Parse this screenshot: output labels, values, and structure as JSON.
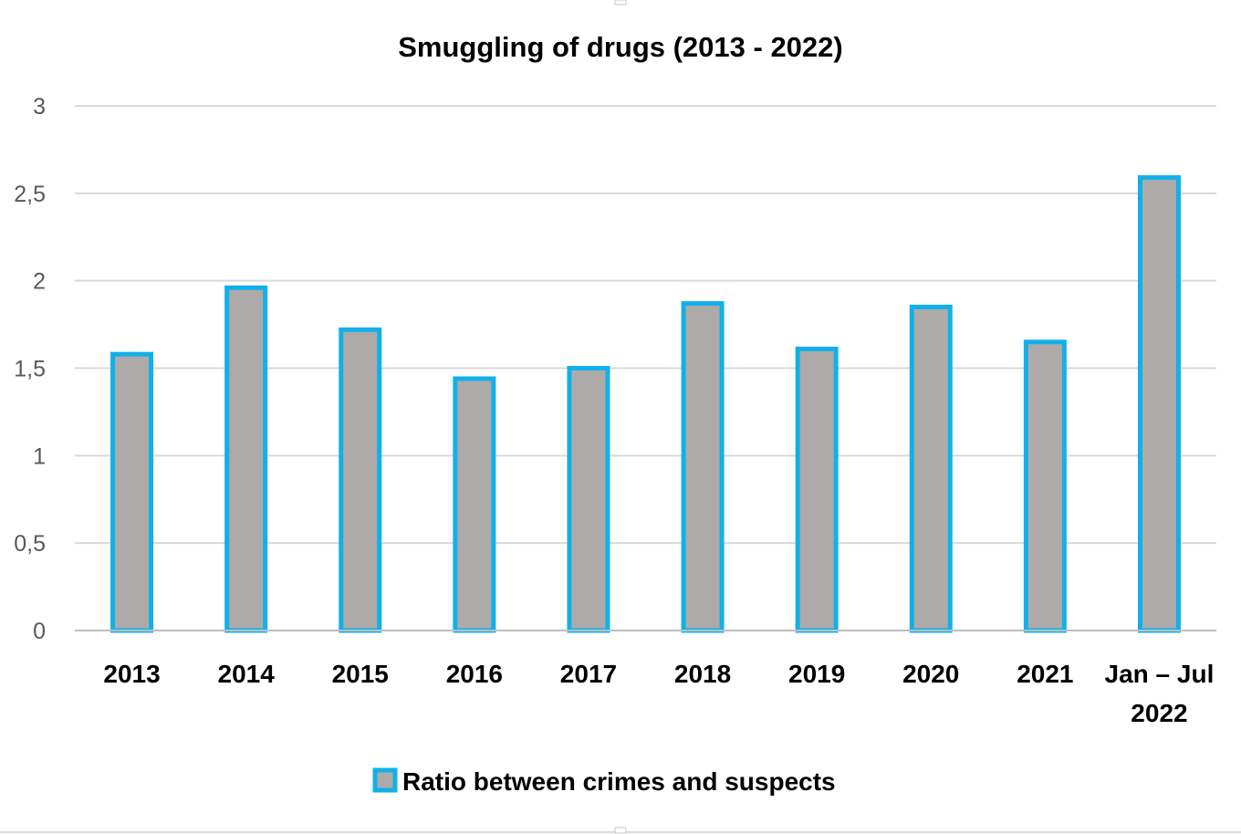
{
  "chart_data": {
    "type": "bar",
    "title": "Smuggling of drugs (2013 - 2022)",
    "categories": [
      [
        "2013"
      ],
      [
        "2014"
      ],
      [
        "2015"
      ],
      [
        "2016"
      ],
      [
        "2017"
      ],
      [
        "2018"
      ],
      [
        "2019"
      ],
      [
        "2020"
      ],
      [
        "2021"
      ],
      [
        "Jan – Jul",
        "2022"
      ]
    ],
    "series": [
      {
        "name": "Ratio between crimes and suspects",
        "values": [
          1.58,
          1.96,
          1.72,
          1.44,
          1.5,
          1.87,
          1.61,
          1.85,
          1.65,
          2.59
        ]
      }
    ],
    "ylim": [
      0,
      3
    ],
    "yticks": [
      {
        "value": 0,
        "label": "0"
      },
      {
        "value": 0.5,
        "label": "0,5"
      },
      {
        "value": 1,
        "label": "1"
      },
      {
        "value": 1.5,
        "label": "1,5"
      },
      {
        "value": 2,
        "label": "2"
      },
      {
        "value": 2.5,
        "label": "2,5"
      },
      {
        "value": 3,
        "label": "3"
      }
    ],
    "xlabel": "",
    "ylabel": "",
    "grid": true,
    "legend_position": "bottom-center",
    "colors": {
      "bar_fill": "#aeaaaa",
      "bar_border": "#12b0e8",
      "grid": "#d9d9d9"
    }
  }
}
